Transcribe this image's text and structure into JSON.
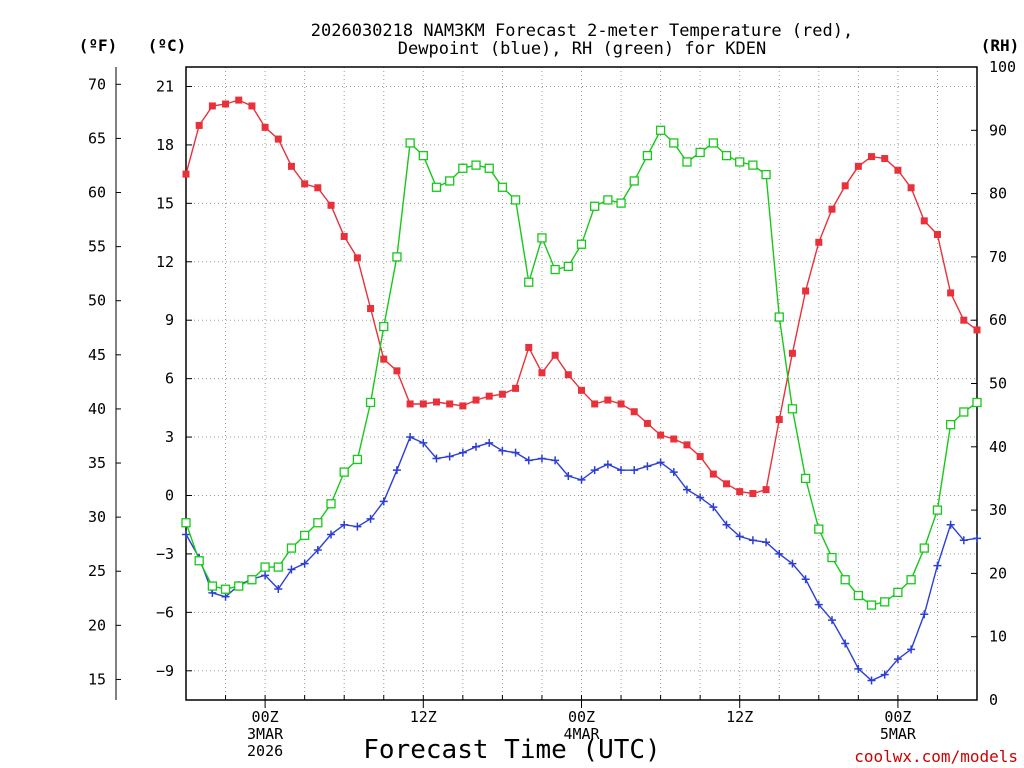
{
  "title": {
    "line1": "2026030218 NAM3KM Forecast 2-meter Temperature (red),",
    "line2": "Dewpoint (blue), RH (green) for KDEN"
  },
  "credit": "coolwx.com/models",
  "colors": {
    "temperature": "#e8313a",
    "dewpoint": "#2b3fd6",
    "rh": "#18c81a"
  },
  "chart_data": {
    "type": "line",
    "xlabel": "Forecast Time (UTC)",
    "x_tick_labels": [
      {
        "hour": 6,
        "lines": [
          "00Z",
          "3MAR",
          "2026"
        ]
      },
      {
        "hour": 18,
        "lines": [
          "12Z"
        ]
      },
      {
        "hour": 30,
        "lines": [
          "00Z",
          "4MAR"
        ]
      },
      {
        "hour": 42,
        "lines": [
          "12Z"
        ]
      },
      {
        "hour": 54,
        "lines": [
          "00Z",
          "5MAR"
        ]
      }
    ],
    "x_range": [
      0,
      60
    ],
    "grid": true,
    "axes": {
      "fahrenheit": {
        "label": "(ºF)",
        "side": "left-outer",
        "ticks": [
          15,
          20,
          25,
          30,
          35,
          40,
          45,
          50,
          55,
          60,
          65,
          70
        ]
      },
      "celsius": {
        "label": "(ºC)",
        "side": "left-inner",
        "range": [
          -10.5,
          22
        ],
        "ticks": [
          -9,
          -6,
          -3,
          0,
          3,
          6,
          9,
          12,
          15,
          18,
          21
        ]
      },
      "rh": {
        "label": "(RH)",
        "side": "right",
        "range": [
          0,
          100
        ],
        "ticks": [
          0,
          10,
          20,
          30,
          40,
          50,
          60,
          70,
          80,
          90,
          100
        ]
      }
    },
    "series": [
      {
        "key": "temperature",
        "unit": "C",
        "marker": "filled-square",
        "values": [
          16.5,
          19.0,
          20.0,
          20.1,
          20.3,
          20.0,
          18.9,
          18.3,
          16.9,
          16.0,
          15.8,
          14.9,
          13.3,
          12.2,
          9.6,
          7.0,
          6.4,
          4.7,
          4.7,
          4.8,
          4.7,
          4.6,
          4.9,
          5.1,
          5.2,
          5.5,
          7.6,
          6.3,
          7.2,
          6.2,
          5.4,
          4.7,
          4.9,
          4.7,
          4.3,
          3.7,
          3.1,
          2.9,
          2.6,
          2.0,
          1.1,
          0.6,
          0.2,
          0.1,
          0.3,
          3.9,
          7.3,
          10.5,
          13.0,
          14.7,
          15.9,
          16.9,
          17.4,
          17.3,
          16.7,
          15.8,
          14.1,
          13.4,
          10.4,
          9.0,
          8.5
        ]
      },
      {
        "key": "dewpoint",
        "unit": "C",
        "marker": "plus",
        "values": [
          -2.0,
          -3.2,
          -5.0,
          -5.2,
          -4.6,
          -4.3,
          -4.1,
          -4.8,
          -3.8,
          -3.5,
          -2.8,
          -2.0,
          -1.5,
          -1.6,
          -1.2,
          -0.3,
          1.3,
          3.0,
          2.7,
          1.9,
          2.0,
          2.2,
          2.5,
          2.7,
          2.3,
          2.2,
          1.8,
          1.9,
          1.8,
          1.0,
          0.8,
          1.3,
          1.6,
          1.3,
          1.3,
          1.5,
          1.7,
          1.2,
          0.3,
          -0.1,
          -0.6,
          -1.5,
          -2.1,
          -2.3,
          -2.4,
          -3.0,
          -3.5,
          -4.3,
          -5.6,
          -6.4,
          -7.6,
          -8.9,
          -9.5,
          -9.2,
          -8.4,
          -7.9,
          -6.1,
          -3.6,
          -1.5,
          -2.3,
          -2.2
        ]
      },
      {
        "key": "rh",
        "unit": "%",
        "marker": "open-square",
        "values": [
          28,
          22,
          18,
          17.5,
          18,
          19,
          21,
          21,
          24,
          26,
          28,
          31,
          36,
          38,
          47,
          59,
          70,
          88,
          86,
          81,
          82,
          84,
          84.5,
          84,
          81,
          79,
          66,
          73,
          68,
          68.5,
          72,
          78,
          79,
          78.5,
          82,
          86,
          90,
          88,
          85,
          86.5,
          88,
          86,
          85,
          84.5,
          83,
          60.5,
          46,
          35,
          27,
          22.5,
          19,
          16.5,
          15,
          15.5,
          17,
          19,
          24,
          30,
          43.5,
          45.5,
          47
        ]
      }
    ]
  }
}
